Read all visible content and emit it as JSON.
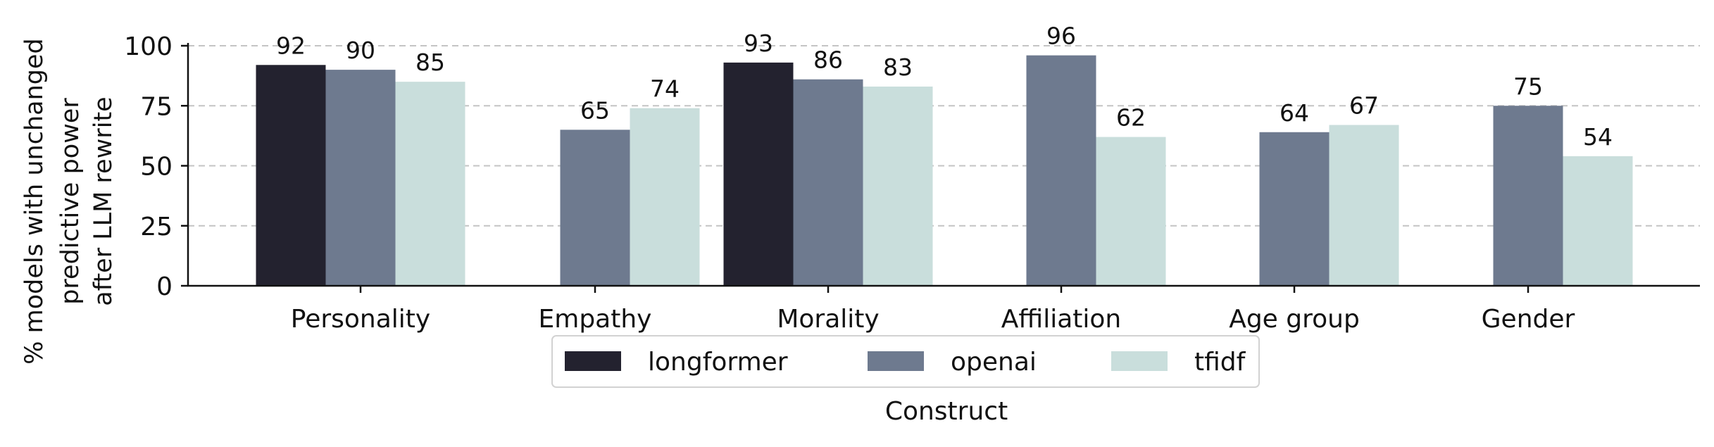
{
  "chart_data": {
    "type": "bar",
    "categories": [
      "Personality",
      "Empathy",
      "Morality",
      "Affiliation",
      "Age group",
      "Gender"
    ],
    "series": [
      {
        "name": "longformer",
        "color": "#23222f",
        "values": [
          92,
          null,
          93,
          null,
          null,
          null
        ]
      },
      {
        "name": "openai",
        "color": "#6e7a8f",
        "values": [
          90,
          65,
          86,
          96,
          64,
          75
        ]
      },
      {
        "name": "tfidf",
        "color": "#c9dedc",
        "values": [
          85,
          74,
          83,
          62,
          67,
          54
        ]
      }
    ],
    "bar_labels": [
      {
        "category": "Personality",
        "series": "longformer",
        "text": "92"
      },
      {
        "category": "Personality",
        "series": "openai",
        "text": "90"
      },
      {
        "category": "Personality",
        "series": "tfidf",
        "text": "85"
      },
      {
        "category": "Empathy",
        "series": "openai",
        "text": "65"
      },
      {
        "category": "Empathy",
        "series": "tfidf",
        "text": "74"
      },
      {
        "category": "Morality",
        "series": "longformer",
        "text": "93"
      },
      {
        "category": "Morality",
        "series": "openai",
        "text": "86"
      },
      {
        "category": "Morality",
        "series": "tfidf",
        "text": "83"
      },
      {
        "category": "Affiliation",
        "series": "openai",
        "text": "96"
      },
      {
        "category": "Affiliation",
        "series": "tfidf",
        "text": "62"
      },
      {
        "category": "Age group",
        "series": "openai",
        "text": "64"
      },
      {
        "category": "Age group",
        "series": "tfidf",
        "text": "67"
      },
      {
        "category": "Gender",
        "series": "openai",
        "text": "75"
      },
      {
        "category": "Gender",
        "series": "tfidf",
        "text": "54"
      }
    ],
    "title": "",
    "xlabel": "Construct",
    "ylabel_lines": [
      "% models with unchanged",
      "predictive power",
      "after LLM rewrite"
    ],
    "ylim": [
      0,
      100
    ],
    "yticks": [
      0,
      25,
      50,
      75,
      100
    ],
    "ytick_labels": [
      "0",
      "25",
      "50",
      "75",
      "100"
    ],
    "grid": "horizontal dashed",
    "legend_position": "bottom-center"
  }
}
